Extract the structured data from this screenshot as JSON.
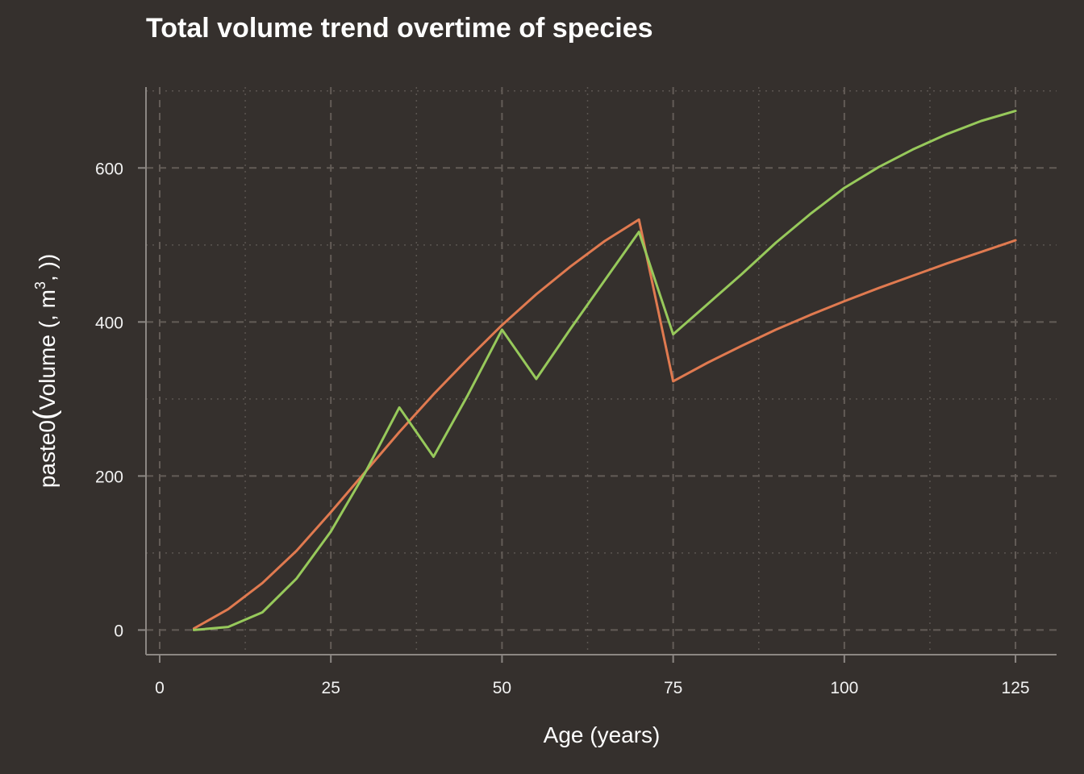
{
  "chart_data": {
    "type": "line",
    "title": "Total volume trend overtime of species",
    "xlabel": "Age (years)",
    "ylabel": {
      "prefix": "paste0",
      "open_paren": "(",
      "body": "Volume (, m",
      "superscript": "3",
      "tail": ", ))"
    },
    "xlim": [
      -2,
      131
    ],
    "ylim": [
      -32,
      705
    ],
    "x_ticks": [
      0,
      25,
      50,
      75,
      100,
      125
    ],
    "x_tick_labels": [
      "0",
      "25",
      "50",
      "75",
      "100",
      "125"
    ],
    "y_ticks": [
      0,
      200,
      400,
      600
    ],
    "y_tick_labels": [
      "0",
      "200",
      "400",
      "600"
    ],
    "grid": true,
    "series": [
      {
        "color": "#e07a50",
        "x": [
          5,
          10,
          15,
          20,
          25,
          30,
          35,
          40,
          45,
          50,
          55,
          60,
          65,
          70,
          75,
          80,
          85,
          90,
          95,
          100,
          105,
          110,
          115,
          120,
          125
        ],
        "values": [
          2,
          27,
          61,
          103,
          153,
          205,
          257,
          306,
          352,
          396,
          436,
          472,
          505,
          533,
          323,
          347,
          369,
          390,
          409,
          427,
          444,
          460,
          476,
          491,
          506
        ]
      },
      {
        "color": "#97c95b",
        "x": [
          5,
          10,
          15,
          20,
          25,
          30,
          35,
          40,
          45,
          50,
          55,
          60,
          65,
          70,
          75,
          80,
          85,
          90,
          95,
          100,
          105,
          110,
          115,
          120,
          125
        ],
        "values": [
          0,
          4,
          23,
          67,
          128,
          204,
          289,
          225,
          305,
          390,
          326,
          391,
          454,
          517,
          384,
          423,
          462,
          503,
          540,
          574,
          601,
          624,
          644,
          661,
          674
        ]
      }
    ]
  }
}
